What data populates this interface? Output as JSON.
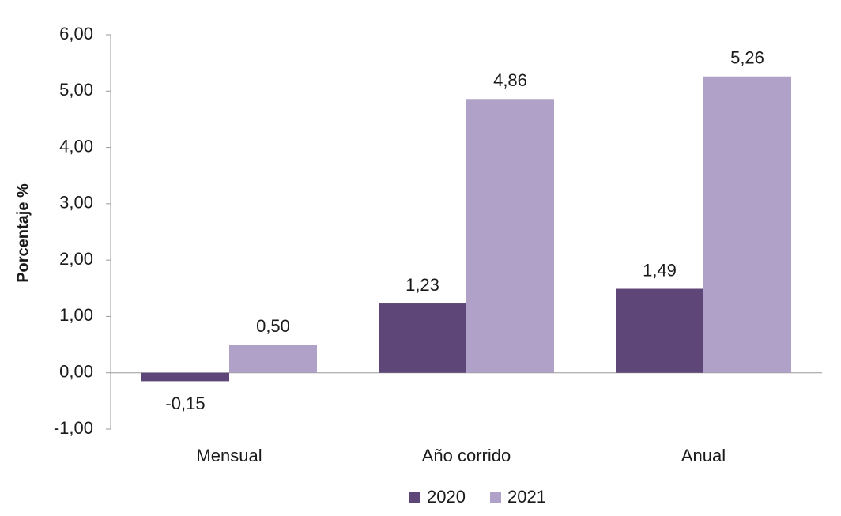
{
  "chart_data": {
    "type": "bar",
    "categories": [
      "Mensual",
      "Año corrido",
      "Anual"
    ],
    "series": [
      {
        "name": "2020",
        "values": [
          -0.15,
          1.23,
          1.49
        ],
        "labels": [
          "-0,15",
          "1,23",
          "1,49"
        ],
        "color": "#5e4778"
      },
      {
        "name": "2021",
        "values": [
          0.5,
          4.86,
          5.26
        ],
        "labels": [
          "0,50",
          "4,86",
          "5,26"
        ],
        "color": "#b0a1c8"
      }
    ],
    "ylabel": "Porcentaje %",
    "ylim": [
      -1,
      6
    ],
    "yticks": [
      -1,
      0,
      1,
      2,
      3,
      4,
      5,
      6
    ],
    "ytick_labels": [
      "-1,00",
      "0,00",
      "1,00",
      "2,00",
      "3,00",
      "4,00",
      "5,00",
      "6,00"
    ],
    "legend_position": "bottom",
    "grid": false
  }
}
